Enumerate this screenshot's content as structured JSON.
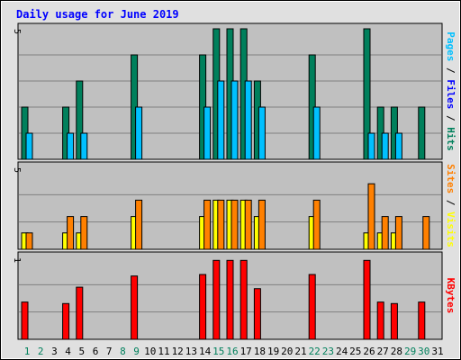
{
  "chart_data": {
    "title": "Daily usage for June 2019",
    "days": [
      "1",
      "2",
      "3",
      "4",
      "5",
      "6",
      "7",
      "8",
      "9",
      "10",
      "11",
      "12",
      "13",
      "14",
      "15",
      "16",
      "17",
      "18",
      "19",
      "20",
      "21",
      "22",
      "23",
      "24",
      "25",
      "26",
      "27",
      "28",
      "29",
      "30",
      "31"
    ],
    "weekend_days": [
      "1",
      "2",
      "8",
      "9",
      "15",
      "16",
      "22",
      "23",
      "29",
      "30"
    ],
    "colors": {
      "title": "#0000ff",
      "hits": "#00805c",
      "files": "#00c0ff",
      "sites": "#ff8000",
      "visits": "#ffff00",
      "kbytes": "#ff0000",
      "weekday_label": "#000000",
      "weekend_label": "#00805c",
      "plot_bg": "#c0c0c0",
      "frame_bg": "#e0e0e0"
    },
    "panels": [
      {
        "type": "bar",
        "ymax_label": "5",
        "ymax": 5,
        "side_label": [
          {
            "text": "Pages",
            "color": "#00c0ff"
          },
          {
            "text": " / ",
            "color": "#000000"
          },
          {
            "text": "Files",
            "color": "#0000ff"
          },
          {
            "text": " / ",
            "color": "#000000"
          },
          {
            "text": "Hits",
            "color": "#00805c"
          }
        ],
        "series": [
          {
            "name": "Hits",
            "color": "#00805c",
            "values": [
              2,
              0,
              0,
              2,
              3,
              0,
              0,
              0,
              4,
              0,
              0,
              0,
              0,
              4,
              5,
              5,
              5,
              3,
              0,
              0,
              0,
              4,
              0,
              0,
              0,
              5,
              2,
              2,
              0,
              2,
              0
            ]
          },
          {
            "name": "Files",
            "color": "#00c0ff",
            "values": [
              1,
              0,
              0,
              1,
              1,
              0,
              0,
              0,
              2,
              0,
              0,
              0,
              0,
              2,
              3,
              3,
              3,
              2,
              0,
              0,
              0,
              2,
              0,
              0,
              0,
              1,
              1,
              1,
              0,
              0,
              0
            ]
          }
        ]
      },
      {
        "type": "bar",
        "ymax_label": "5",
        "ymax": 5,
        "side_label": [
          {
            "text": "Sites",
            "color": "#ff8000"
          },
          {
            "text": " / ",
            "color": "#000000"
          },
          {
            "text": "Visits",
            "color": "#ffff00"
          }
        ],
        "series": [
          {
            "name": "Visits",
            "color": "#ffff00",
            "values": [
              1,
              0,
              0,
              1,
              1,
              0,
              0,
              0,
              2,
              0,
              0,
              0,
              0,
              2,
              3,
              3,
              3,
              2,
              0,
              0,
              0,
              2,
              0,
              0,
              0,
              1,
              1,
              1,
              0,
              0,
              0
            ]
          },
          {
            "name": "Sites",
            "color": "#ff8000",
            "values": [
              1,
              0,
              0,
              2,
              2,
              0,
              0,
              0,
              3,
              0,
              0,
              0,
              0,
              3,
              3,
              3,
              3,
              3,
              0,
              0,
              0,
              3,
              0,
              0,
              0,
              4,
              2,
              2,
              0,
              2,
              0
            ]
          }
        ]
      },
      {
        "type": "bar",
        "ymax_label": "1",
        "ymax": 1.1,
        "side_label": [
          {
            "text": "KBytes",
            "color": "#ff0000"
          }
        ],
        "series": [
          {
            "name": "KBytes",
            "color": "#ff0000",
            "values": [
              0.5,
              0,
              0,
              0.48,
              0.7,
              0,
              0,
              0,
              0.85,
              0,
              0,
              0,
              0,
              0.87,
              1.06,
              1.06,
              1.06,
              0.68,
              0,
              0,
              0,
              0.87,
              0,
              0,
              0,
              1.06,
              0.5,
              0.48,
              0,
              0.5,
              0
            ]
          }
        ]
      }
    ]
  }
}
